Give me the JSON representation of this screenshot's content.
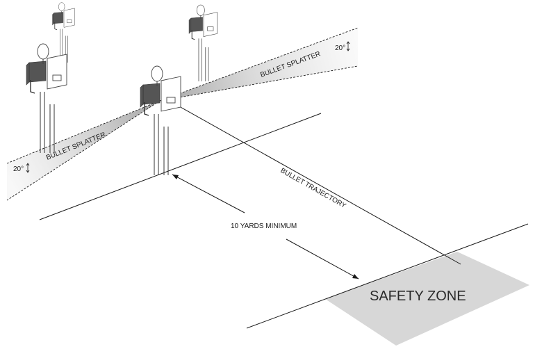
{
  "labels": {
    "splatter_right": "BULLET SPLATTER",
    "splatter_left": "BULLET SPLATTER",
    "angle_right": "20°",
    "angle_left": "20°",
    "trajectory": "BULLET TRAJECTORY",
    "distance": "10 YARDS MINIMUM",
    "safety_zone": "SAFETY ZONE"
  },
  "colors": {
    "safety_zone_fill": "#d7d7d7",
    "splatter_fill": "#e2e2e2",
    "line": "#1a1a1a"
  },
  "icons": [
    "steel-target-icon",
    "vertical-arrow-icon",
    "arrowhead-icon"
  ]
}
